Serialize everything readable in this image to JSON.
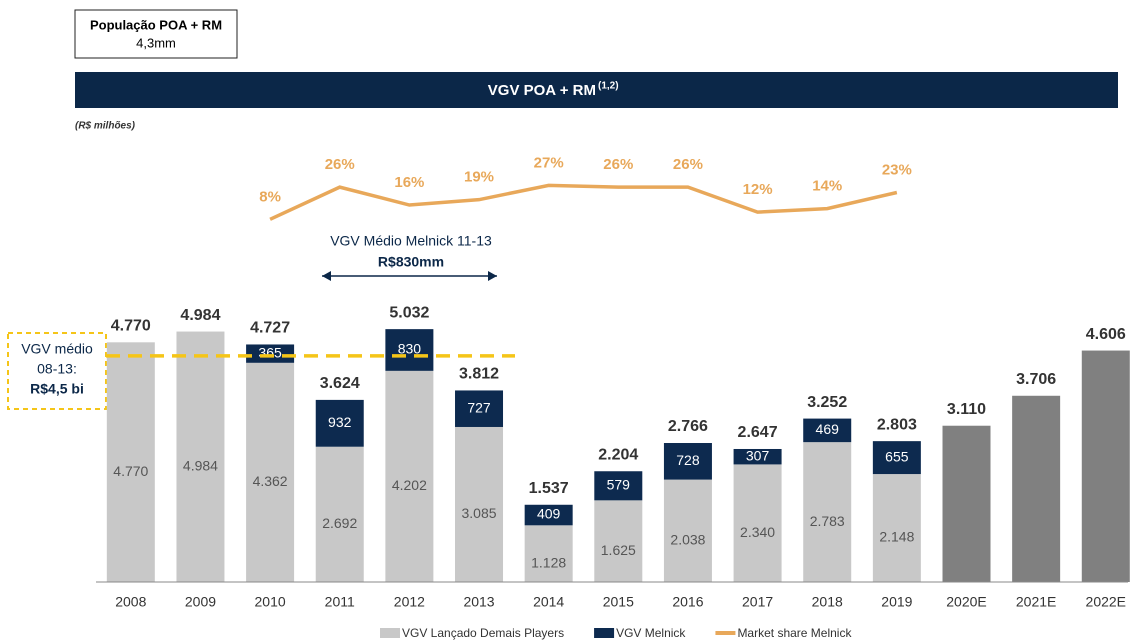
{
  "chart_data": {
    "type": "bar",
    "header_box": {
      "title": "População POA + RM",
      "subtitle": "4,3mm"
    },
    "title": "VGV POA + RM",
    "title_superscript": "(1,2)",
    "unit_label": "(R$ milhões)",
    "categories": [
      "2008",
      "2009",
      "2010",
      "2011",
      "2012",
      "2013",
      "2014",
      "2015",
      "2016",
      "2017",
      "2018",
      "2019",
      "2020E",
      "2021E",
      "2022E"
    ],
    "series": [
      {
        "name": "VGV Lançado Demais Players",
        "color": "#c8c8c8",
        "values": [
          4770,
          4984,
          4362,
          2692,
          4202,
          3085,
          1128,
          1625,
          2038,
          2340,
          2783,
          2148,
          null,
          null,
          null
        ],
        "value_labels": [
          "4.770",
          "4.984",
          "4.362",
          "2.692",
          "4.202",
          "3.085",
          "1.128",
          "1.625",
          "2.038",
          "2.340",
          "2.783",
          "2.148",
          null,
          null,
          null
        ]
      },
      {
        "color": "#808080",
        "values": [
          null,
          null,
          null,
          null,
          null,
          null,
          null,
          null,
          null,
          null,
          null,
          null,
          3110,
          3706,
          4606
        ]
      },
      {
        "name": "VGV Melnick",
        "color": "#0d2a4f",
        "values": [
          null,
          null,
          365,
          932,
          830,
          727,
          409,
          579,
          728,
          307,
          469,
          655,
          null,
          null,
          null
        ]
      },
      {
        "name": "Market share Melnick",
        "color": "#e8a85a",
        "type": "line",
        "axis": "y2",
        "values": [
          null,
          null,
          8,
          26,
          16,
          19,
          27,
          26,
          26,
          12,
          14,
          23,
          null,
          null,
          null
        ],
        "value_labels": [
          null,
          null,
          "8%",
          "26%",
          "16%",
          "19%",
          "27%",
          "26%",
          "26%",
          "12%",
          "14%",
          "23%",
          null,
          null,
          null
        ]
      }
    ],
    "totals": [
      4770,
      4984,
      4727,
      3624,
      5032,
      3812,
      1537,
      2204,
      2766,
      2647,
      3252,
      2803,
      3110,
      3706,
      4606
    ],
    "total_labels": [
      "4.770",
      "4.984",
      "4.727",
      "3.624",
      "5.032",
      "3.812",
      "1.537",
      "2.204",
      "2.766",
      "2.647",
      "3.252",
      "2.803",
      "3.110",
      "3.706",
      "4.606"
    ],
    "ylim": [
      0,
      8000
    ],
    "y2lim": [
      -195,
      30
    ],
    "reference_line": {
      "value": 4500,
      "color": "#f5c518",
      "labels": [
        "VGV médio",
        "08-13:",
        "R$4,5 bi"
      ]
    },
    "annotation": {
      "text": "VGV Médio Melnick 11-13",
      "value_text": "R$830mm"
    }
  }
}
